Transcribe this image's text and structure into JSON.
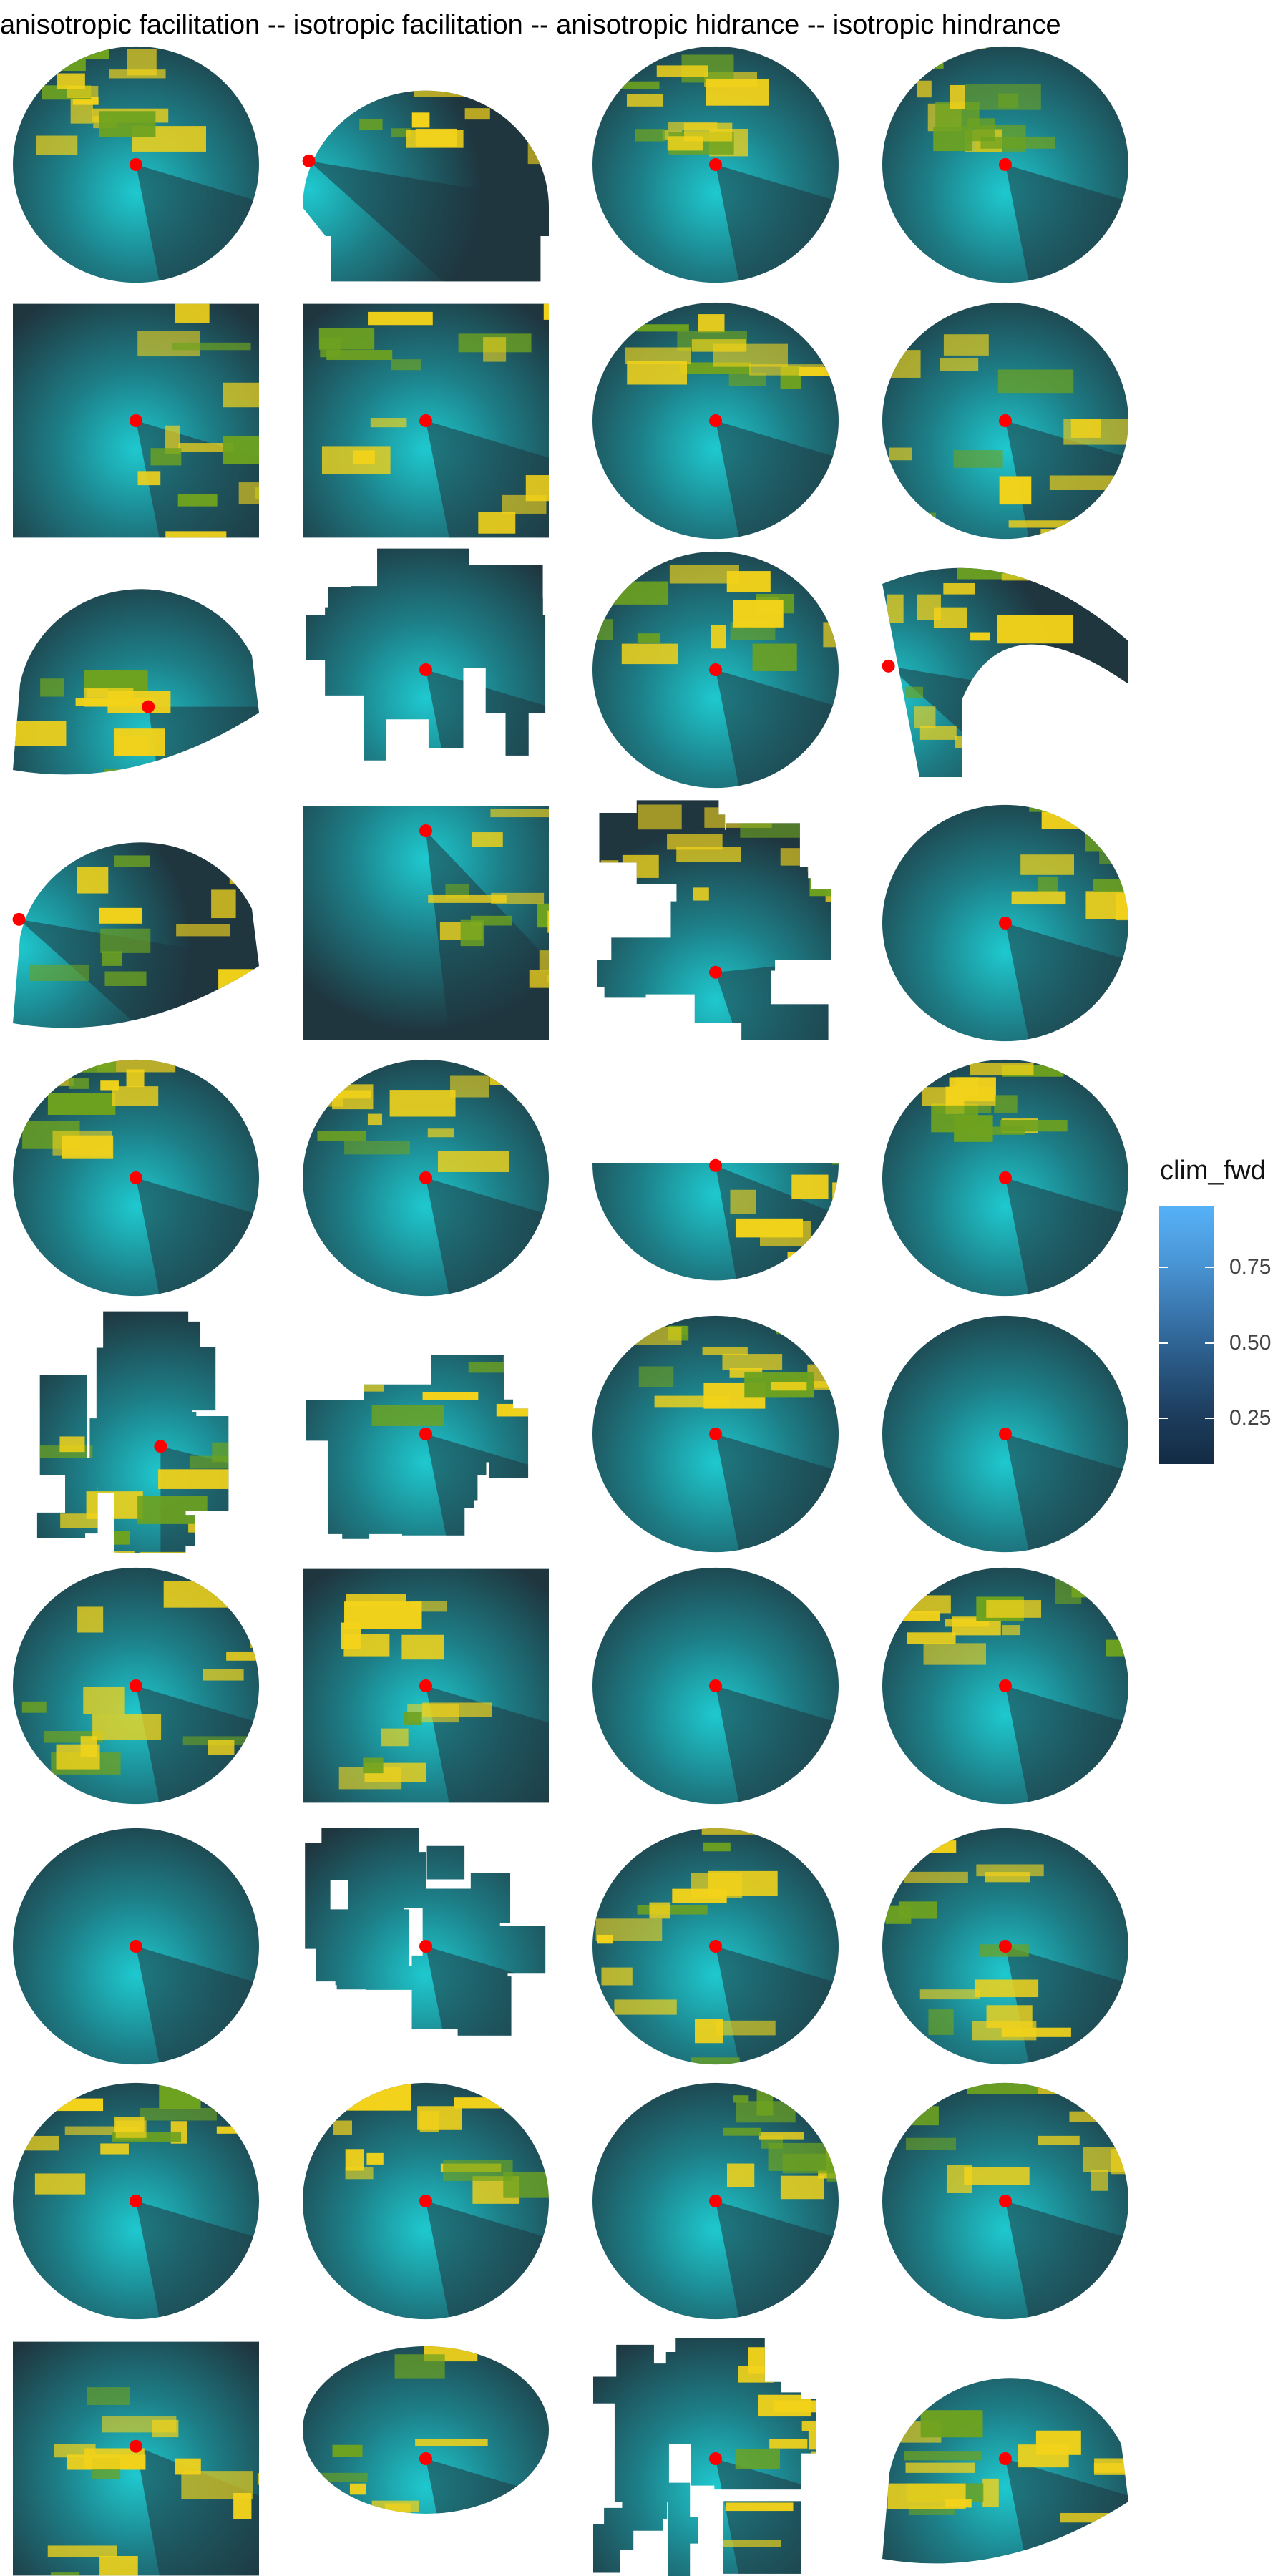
{
  "chart_data": {
    "type": "heatmap",
    "title": "anisotropic facilitation -- isotropic facilitation -- anisotropic hidrance -- isotropic hindrance",
    "columns": [
      "anisotropic facilitation",
      "isotropic facilitation",
      "anisotropic hidrance",
      "isotropic hindrance"
    ],
    "n_rows": 10,
    "panel_shape": "circular raster with red focal point at center",
    "panels": [
      [
        {
          "shape": "circle",
          "hotspot": "upper-left band",
          "focus": "center"
        },
        {
          "shape": "upper half-circle",
          "hotspot": "upper",
          "focus": "left"
        },
        {
          "shape": "circle",
          "hotspot": "upper-left streaks",
          "focus": "center"
        },
        {
          "shape": "circle",
          "hotspot": "upper-left streaks",
          "focus": "center"
        }
      ],
      [
        {
          "shape": "blocky rectangle",
          "hotspot": "right bars",
          "focus": "center"
        },
        {
          "shape": "blocky rectangle",
          "hotspot": "horizontal bars",
          "focus": "center"
        },
        {
          "shape": "circle",
          "hotspot": "upper streaks",
          "focus": "center"
        },
        {
          "shape": "circle",
          "hotspot": "diagonal line",
          "focus": "center"
        }
      ],
      [
        {
          "shape": "partial circle",
          "hotspot": "lower-left edge",
          "focus": "center-right"
        },
        {
          "shape": "fragmented",
          "hotspot": "none",
          "focus": "center"
        },
        {
          "shape": "circle",
          "hotspot": "upper",
          "focus": "center"
        },
        {
          "shape": "arch fragment",
          "hotspot": "left",
          "focus": "left"
        }
      ],
      [
        {
          "shape": "partial circle",
          "hotspot": "grid lines",
          "focus": "left"
        },
        {
          "shape": "blocky rectangle",
          "hotspot": "right",
          "focus": "top"
        },
        {
          "shape": "irregular",
          "hotspot": "upper patches",
          "focus": "lower-center"
        },
        {
          "shape": "circle",
          "hotspot": "upper-right streaks",
          "focus": "center"
        }
      ],
      [
        {
          "shape": "circle",
          "hotspot": "upper-left band",
          "focus": "center"
        },
        {
          "shape": "circle",
          "hotspot": "upper band",
          "focus": "center"
        },
        {
          "shape": "lower half-circle",
          "hotspot": "right edge",
          "focus": "top-center"
        },
        {
          "shape": "circle",
          "hotspot": "upper-left swirl",
          "focus": "center"
        }
      ],
      [
        {
          "shape": "fragmented",
          "hotspot": "lower patch",
          "focus": "lower-right"
        },
        {
          "shape": "fragmented",
          "hotspot": "upper stripes",
          "focus": "center"
        },
        {
          "shape": "circle",
          "hotspot": "upper band",
          "focus": "center"
        },
        {
          "shape": "circle",
          "hotspot": "none",
          "focus": "center"
        }
      ],
      [
        {
          "shape": "circle",
          "hotspot": "scattered streaks",
          "focus": "center"
        },
        {
          "shape": "blocky rectangle",
          "hotspot": "left bar",
          "focus": "center"
        },
        {
          "shape": "circle",
          "hotspot": "none",
          "focus": "center"
        },
        {
          "shape": "circle",
          "hotspot": "upper band",
          "focus": "center"
        }
      ],
      [
        {
          "shape": "circle",
          "hotspot": "none",
          "focus": "center"
        },
        {
          "shape": "fragmented",
          "hotspot": "none",
          "focus": "center"
        },
        {
          "shape": "circle",
          "hotspot": "left swirl",
          "focus": "center"
        },
        {
          "shape": "circle",
          "hotspot": "left swirl",
          "focus": "center"
        }
      ],
      [
        {
          "shape": "circle",
          "hotspot": "upper stripes",
          "focus": "center"
        },
        {
          "shape": "circle",
          "hotspot": "upper band",
          "focus": "center"
        },
        {
          "shape": "circle",
          "hotspot": "upper-right",
          "focus": "center"
        },
        {
          "shape": "circle",
          "hotspot": "upper band",
          "focus": "center"
        }
      ],
      [
        {
          "shape": "blocky rectangle",
          "hotspot": "horizontal bar",
          "focus": "top-center"
        },
        {
          "shape": "lens",
          "hotspot": "left edge",
          "focus": "center"
        },
        {
          "shape": "fragmented",
          "hotspot": "right",
          "focus": "center"
        },
        {
          "shape": "partial circle",
          "hotspot": "grid lines",
          "focus": "center"
        }
      ]
    ],
    "legend": {
      "title": "clim_fwd",
      "ticks": [
        0.75,
        0.5,
        0.25
      ],
      "tick_labels": [
        "0.75",
        "0.50",
        "0.25"
      ],
      "range": [
        0.1,
        0.95
      ],
      "colors": [
        "#132b43",
        "#56b1f7"
      ],
      "position": "right"
    },
    "colors": {
      "dark": "#1f363f",
      "mid": "#1d7e87",
      "cyan": "#1ec9cf",
      "green": "#6ea21f",
      "yellow": "#f2d21a",
      "focus": "#ff0000"
    }
  }
}
